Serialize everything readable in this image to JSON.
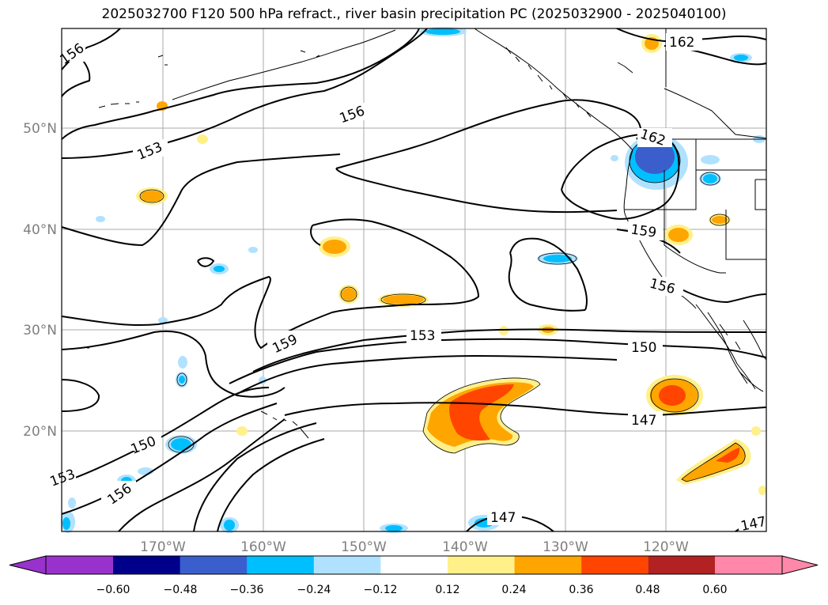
{
  "title": "2025032700 F120 500 hPa refract., river basin precipitation PC (2025032900 - 2025040100)",
  "lat_labels": [
    "50°N",
    "40°N",
    "30°N",
    "20°N"
  ],
  "lon_labels": [
    "170°W",
    "160°W",
    "150°W",
    "140°W",
    "130°W",
    "120°W"
  ],
  "contour_labels": [
    "156",
    "162",
    "153",
    "156",
    "162",
    "159",
    "156",
    "159",
    "153",
    "150",
    "150",
    "147",
    "147",
    "147",
    "153",
    "156"
  ],
  "colorbar": {
    "ticks": [
      "−0.60",
      "−0.48",
      "−0.36",
      "−0.24",
      "−0.12",
      "0.12",
      "0.24",
      "0.36",
      "0.48",
      "0.60"
    ],
    "colors": [
      "#9932cc",
      "#00008b",
      "#3a5fcd",
      "#00bfff",
      "#b0e2ff",
      "#ffffff",
      "#fff08a",
      "#ffa500",
      "#ff4500",
      "#b22222",
      "#ff88aa"
    ]
  }
}
